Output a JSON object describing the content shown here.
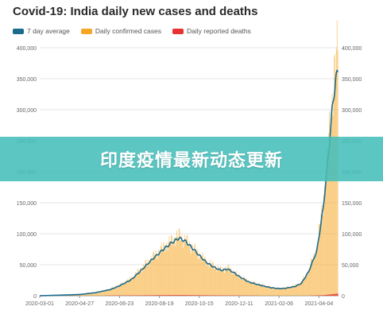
{
  "banner": {
    "text": "印度疫情最新动态更新"
  },
  "colors": {
    "avg": "#1c6b8c",
    "confirmed": "#f5a623",
    "deaths": "#e8322f",
    "grid": "#e6e6e6",
    "tick": "#666666"
  },
  "chart_data": {
    "type": "bar",
    "title": "Covid-19: India daily new cases and deaths",
    "legend": [
      {
        "name": "7 day average",
        "color": "#1c6b8c"
      },
      {
        "name": "Daily confirmed cases",
        "color": "#f5a623"
      },
      {
        "name": "Daily reported deaths",
        "color": "#e8322f"
      }
    ],
    "legend_position": "top-left",
    "grid": true,
    "x_range": [
      "2020-03-01",
      "2021-05-02"
    ],
    "ylim": [
      0,
      400000
    ],
    "y_ticks": [
      0,
      50000,
      100000,
      150000,
      200000,
      250000,
      300000,
      350000,
      400000
    ],
    "y_tick_labels": [
      "0",
      "50,000",
      "100,000",
      "150,000",
      "200,000",
      "250,000",
      "300,000",
      "350,000",
      "400,000"
    ],
    "x_ticks": [
      "2020-03-01",
      "2020-04-27",
      "2020-06-23",
      "2020-08-19",
      "2020-10-15",
      "2020-12-11",
      "2021-02-06",
      "2021-04-04"
    ],
    "series": [
      {
        "name": "7 day average",
        "type": "line",
        "points": [
          [
            "2020-03-01",
            0
          ],
          [
            "2020-04-01",
            1000
          ],
          [
            "2020-04-27",
            2000
          ],
          [
            "2020-05-20",
            5000
          ],
          [
            "2020-06-10",
            10000
          ],
          [
            "2020-06-23",
            16000
          ],
          [
            "2020-07-10",
            26000
          ],
          [
            "2020-07-25",
            42000
          ],
          [
            "2020-08-10",
            60000
          ],
          [
            "2020-08-25",
            75000
          ],
          [
            "2020-09-05",
            85000
          ],
          [
            "2020-09-16",
            93000
          ],
          [
            "2020-09-25",
            88000
          ],
          [
            "2020-10-05",
            77000
          ],
          [
            "2020-10-15",
            65000
          ],
          [
            "2020-10-25",
            54000
          ],
          [
            "2020-11-05",
            46000
          ],
          [
            "2020-11-15",
            41000
          ],
          [
            "2020-11-25",
            43000
          ],
          [
            "2020-12-05",
            36000
          ],
          [
            "2020-12-11",
            31000
          ],
          [
            "2020-12-25",
            22000
          ],
          [
            "2021-01-10",
            17000
          ],
          [
            "2021-01-25",
            13000
          ],
          [
            "2021-02-06",
            11500
          ],
          [
            "2021-02-15",
            12000
          ],
          [
            "2021-03-01",
            15000
          ],
          [
            "2021-03-10",
            20000
          ],
          [
            "2021-03-20",
            38000
          ],
          [
            "2021-04-01",
            72000
          ],
          [
            "2021-04-10",
            140000
          ],
          [
            "2021-04-17",
            220000
          ],
          [
            "2021-04-23",
            300000
          ],
          [
            "2021-04-28",
            350000
          ],
          [
            "2021-05-01",
            358000
          ]
        ]
      },
      {
        "name": "Daily confirmed cases",
        "type": "bar",
        "points": [
          [
            "2020-03-01",
            0
          ],
          [
            "2020-04-01",
            1200
          ],
          [
            "2020-04-27",
            2300
          ],
          [
            "2020-05-20",
            5500
          ],
          [
            "2020-06-10",
            11000
          ],
          [
            "2020-06-23",
            17000
          ],
          [
            "2020-07-10",
            28000
          ],
          [
            "2020-07-25",
            45000
          ],
          [
            "2020-08-10",
            63000
          ],
          [
            "2020-08-25",
            78000
          ],
          [
            "2020-09-05",
            88000
          ],
          [
            "2020-09-16",
            97000
          ],
          [
            "2020-09-25",
            90000
          ],
          [
            "2020-10-05",
            78000
          ],
          [
            "2020-10-15",
            67000
          ],
          [
            "2020-10-25",
            55000
          ],
          [
            "2020-11-05",
            48000
          ],
          [
            "2020-11-15",
            42000
          ],
          [
            "2020-11-25",
            45000
          ],
          [
            "2020-12-05",
            37000
          ],
          [
            "2020-12-11",
            32000
          ],
          [
            "2020-12-25",
            23000
          ],
          [
            "2021-01-10",
            18000
          ],
          [
            "2021-01-25",
            14000
          ],
          [
            "2021-02-06",
            12000
          ],
          [
            "2021-02-15",
            13000
          ],
          [
            "2021-03-01",
            16000
          ],
          [
            "2021-03-10",
            22000
          ],
          [
            "2021-03-20",
            40000
          ],
          [
            "2021-04-01",
            76000
          ],
          [
            "2021-04-10",
            150000
          ],
          [
            "2021-04-17",
            235000
          ],
          [
            "2021-04-23",
            320000
          ],
          [
            "2021-04-28",
            375000
          ],
          [
            "2021-05-01",
            392000
          ]
        ]
      },
      {
        "name": "Daily reported deaths",
        "type": "bar",
        "points": [
          [
            "2020-03-01",
            0
          ],
          [
            "2020-05-20",
            150
          ],
          [
            "2020-07-25",
            700
          ],
          [
            "2020-09-16",
            1200
          ],
          [
            "2020-10-15",
            900
          ],
          [
            "2020-12-11",
            400
          ],
          [
            "2021-02-06",
            100
          ],
          [
            "2021-03-20",
            200
          ],
          [
            "2021-04-10",
            900
          ],
          [
            "2021-04-23",
            2500
          ],
          [
            "2021-05-01",
            3500
          ]
        ]
      }
    ]
  }
}
